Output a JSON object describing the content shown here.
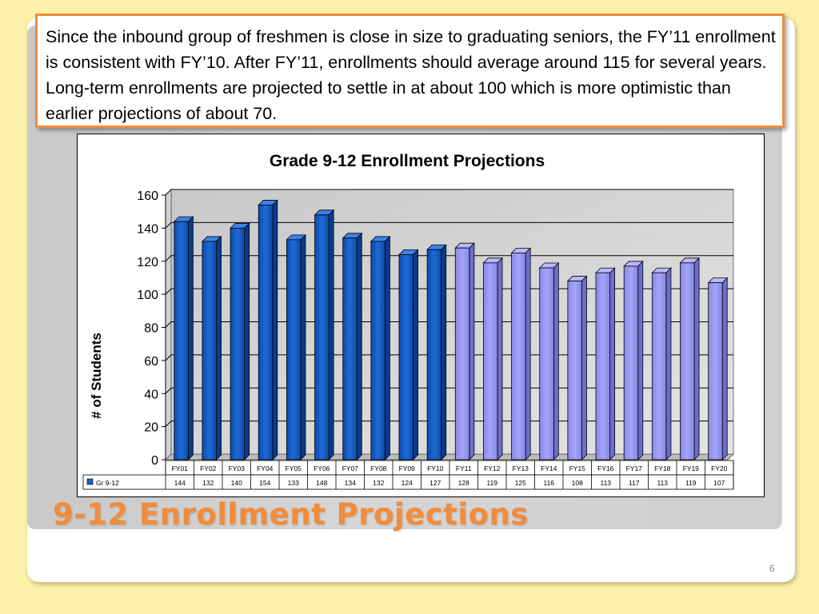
{
  "callout": {
    "text": "Since the inbound group of freshmen is close in size to graduating seniors, the FY’11 enrollment is consistent with FY’10.  After FY’11, enrollments should average around 115 for several years. Long-term enrollments are projected to settle in at about 100 which is more optimistic than earlier projections of about 70."
  },
  "slide": {
    "title": "9-12 Enrollment Projections",
    "page_number": "6"
  },
  "colors": {
    "actual_bar": "#1560c8",
    "projected_bar": "#9898f4",
    "accent": "#f08c3c",
    "background": "#fdf1a9"
  },
  "chart_data": {
    "type": "bar",
    "title": "Grade 9-12 Enrollment Projections",
    "ylabel": "# of Students",
    "xlabel": "",
    "ylim": [
      0,
      160
    ],
    "yticks": [
      0,
      20,
      40,
      60,
      80,
      100,
      120,
      140,
      160
    ],
    "grid": true,
    "categories": [
      "FY01",
      "FY02",
      "FY03",
      "FY04",
      "FY05",
      "FY06",
      "FY07",
      "FY08",
      "FY09",
      "FY10",
      "FY11",
      "FY12",
      "FY13",
      "FY14",
      "FY15",
      "FY16",
      "FY17",
      "FY18",
      "FY19",
      "FY20"
    ],
    "series": [
      {
        "name": "Gr 9-12",
        "values": [
          144,
          132,
          140,
          154,
          133,
          148,
          134,
          132,
          124,
          127,
          128,
          119,
          125,
          116,
          108,
          113,
          117,
          113,
          119,
          107
        ]
      }
    ],
    "data_table": true
  }
}
